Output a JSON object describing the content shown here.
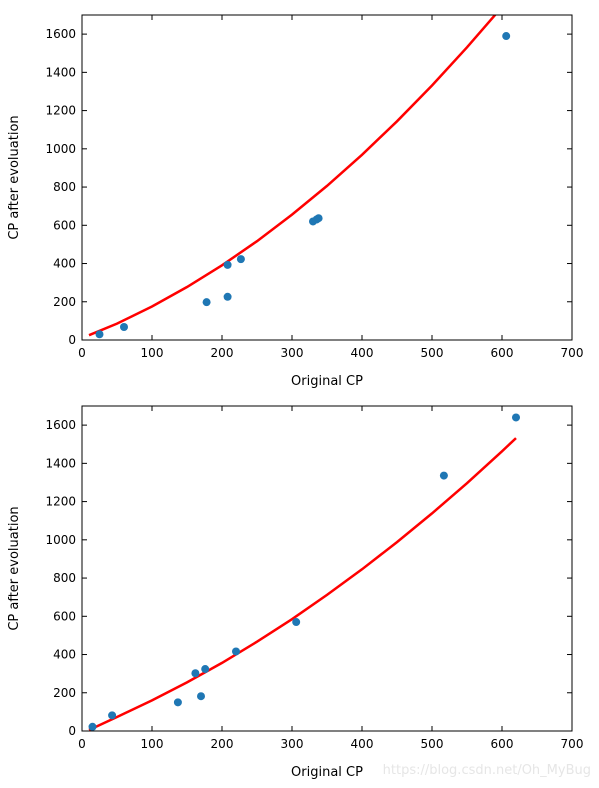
{
  "chart_data": [
    {
      "type": "scatter",
      "title": "",
      "xlabel": "Original CP",
      "ylabel": "CP after evoluation",
      "xlim": [
        0,
        700
      ],
      "ylim": [
        0,
        1700
      ],
      "xticks": [
        0,
        100,
        200,
        300,
        400,
        500,
        600,
        700
      ],
      "yticks": [
        0,
        200,
        400,
        600,
        800,
        1000,
        1200,
        1400,
        1600
      ],
      "grid": false,
      "points": [
        {
          "x": 25,
          "y": 30
        },
        {
          "x": 60,
          "y": 68
        },
        {
          "x": 178,
          "y": 198
        },
        {
          "x": 208,
          "y": 226
        },
        {
          "x": 208,
          "y": 393
        },
        {
          "x": 227,
          "y": 423
        },
        {
          "x": 330,
          "y": 620
        },
        {
          "x": 335,
          "y": 630
        },
        {
          "x": 338,
          "y": 637
        },
        {
          "x": 606,
          "y": 1590
        }
      ],
      "fit_curve": {
        "color": "#ff0000",
        "points": [
          [
            10,
            25
          ],
          [
            50,
            86
          ],
          [
            100,
            175
          ],
          [
            150,
            277
          ],
          [
            200,
            391
          ],
          [
            250,
            517
          ],
          [
            300,
            656
          ],
          [
            350,
            806
          ],
          [
            400,
            969
          ],
          [
            450,
            1144
          ],
          [
            500,
            1331
          ],
          [
            550,
            1531
          ],
          [
            600,
            1742
          ]
        ]
      },
      "point_color": "#1f77b4"
    },
    {
      "type": "scatter",
      "title": "",
      "xlabel": "Original CP",
      "ylabel": "CP after evoluation",
      "xlim": [
        0,
        700
      ],
      "ylim": [
        0,
        1700
      ],
      "xticks": [
        0,
        100,
        200,
        300,
        400,
        500,
        600,
        700
      ],
      "yticks": [
        0,
        200,
        400,
        600,
        800,
        1000,
        1200,
        1400,
        1600
      ],
      "grid": false,
      "points": [
        {
          "x": 15,
          "y": 22
        },
        {
          "x": 43,
          "y": 82
        },
        {
          "x": 137,
          "y": 150
        },
        {
          "x": 162,
          "y": 302
        },
        {
          "x": 170,
          "y": 182
        },
        {
          "x": 176,
          "y": 324
        },
        {
          "x": 220,
          "y": 416
        },
        {
          "x": 306,
          "y": 570
        },
        {
          "x": 517,
          "y": 1336
        },
        {
          "x": 620,
          "y": 1640
        }
      ],
      "fit_curve": {
        "color": "#ff0000",
        "points": [
          [
            10,
            5
          ],
          [
            50,
            73
          ],
          [
            100,
            160
          ],
          [
            150,
            254
          ],
          [
            200,
            356
          ],
          [
            250,
            467
          ],
          [
            300,
            585
          ],
          [
            350,
            712
          ],
          [
            400,
            846
          ],
          [
            450,
            988
          ],
          [
            500,
            1138
          ],
          [
            550,
            1296
          ],
          [
            600,
            1463
          ],
          [
            620,
            1532
          ]
        ]
      },
      "point_color": "#1f77b4"
    }
  ],
  "watermark": "https://blog.csdn.net/Oh_MyBug"
}
